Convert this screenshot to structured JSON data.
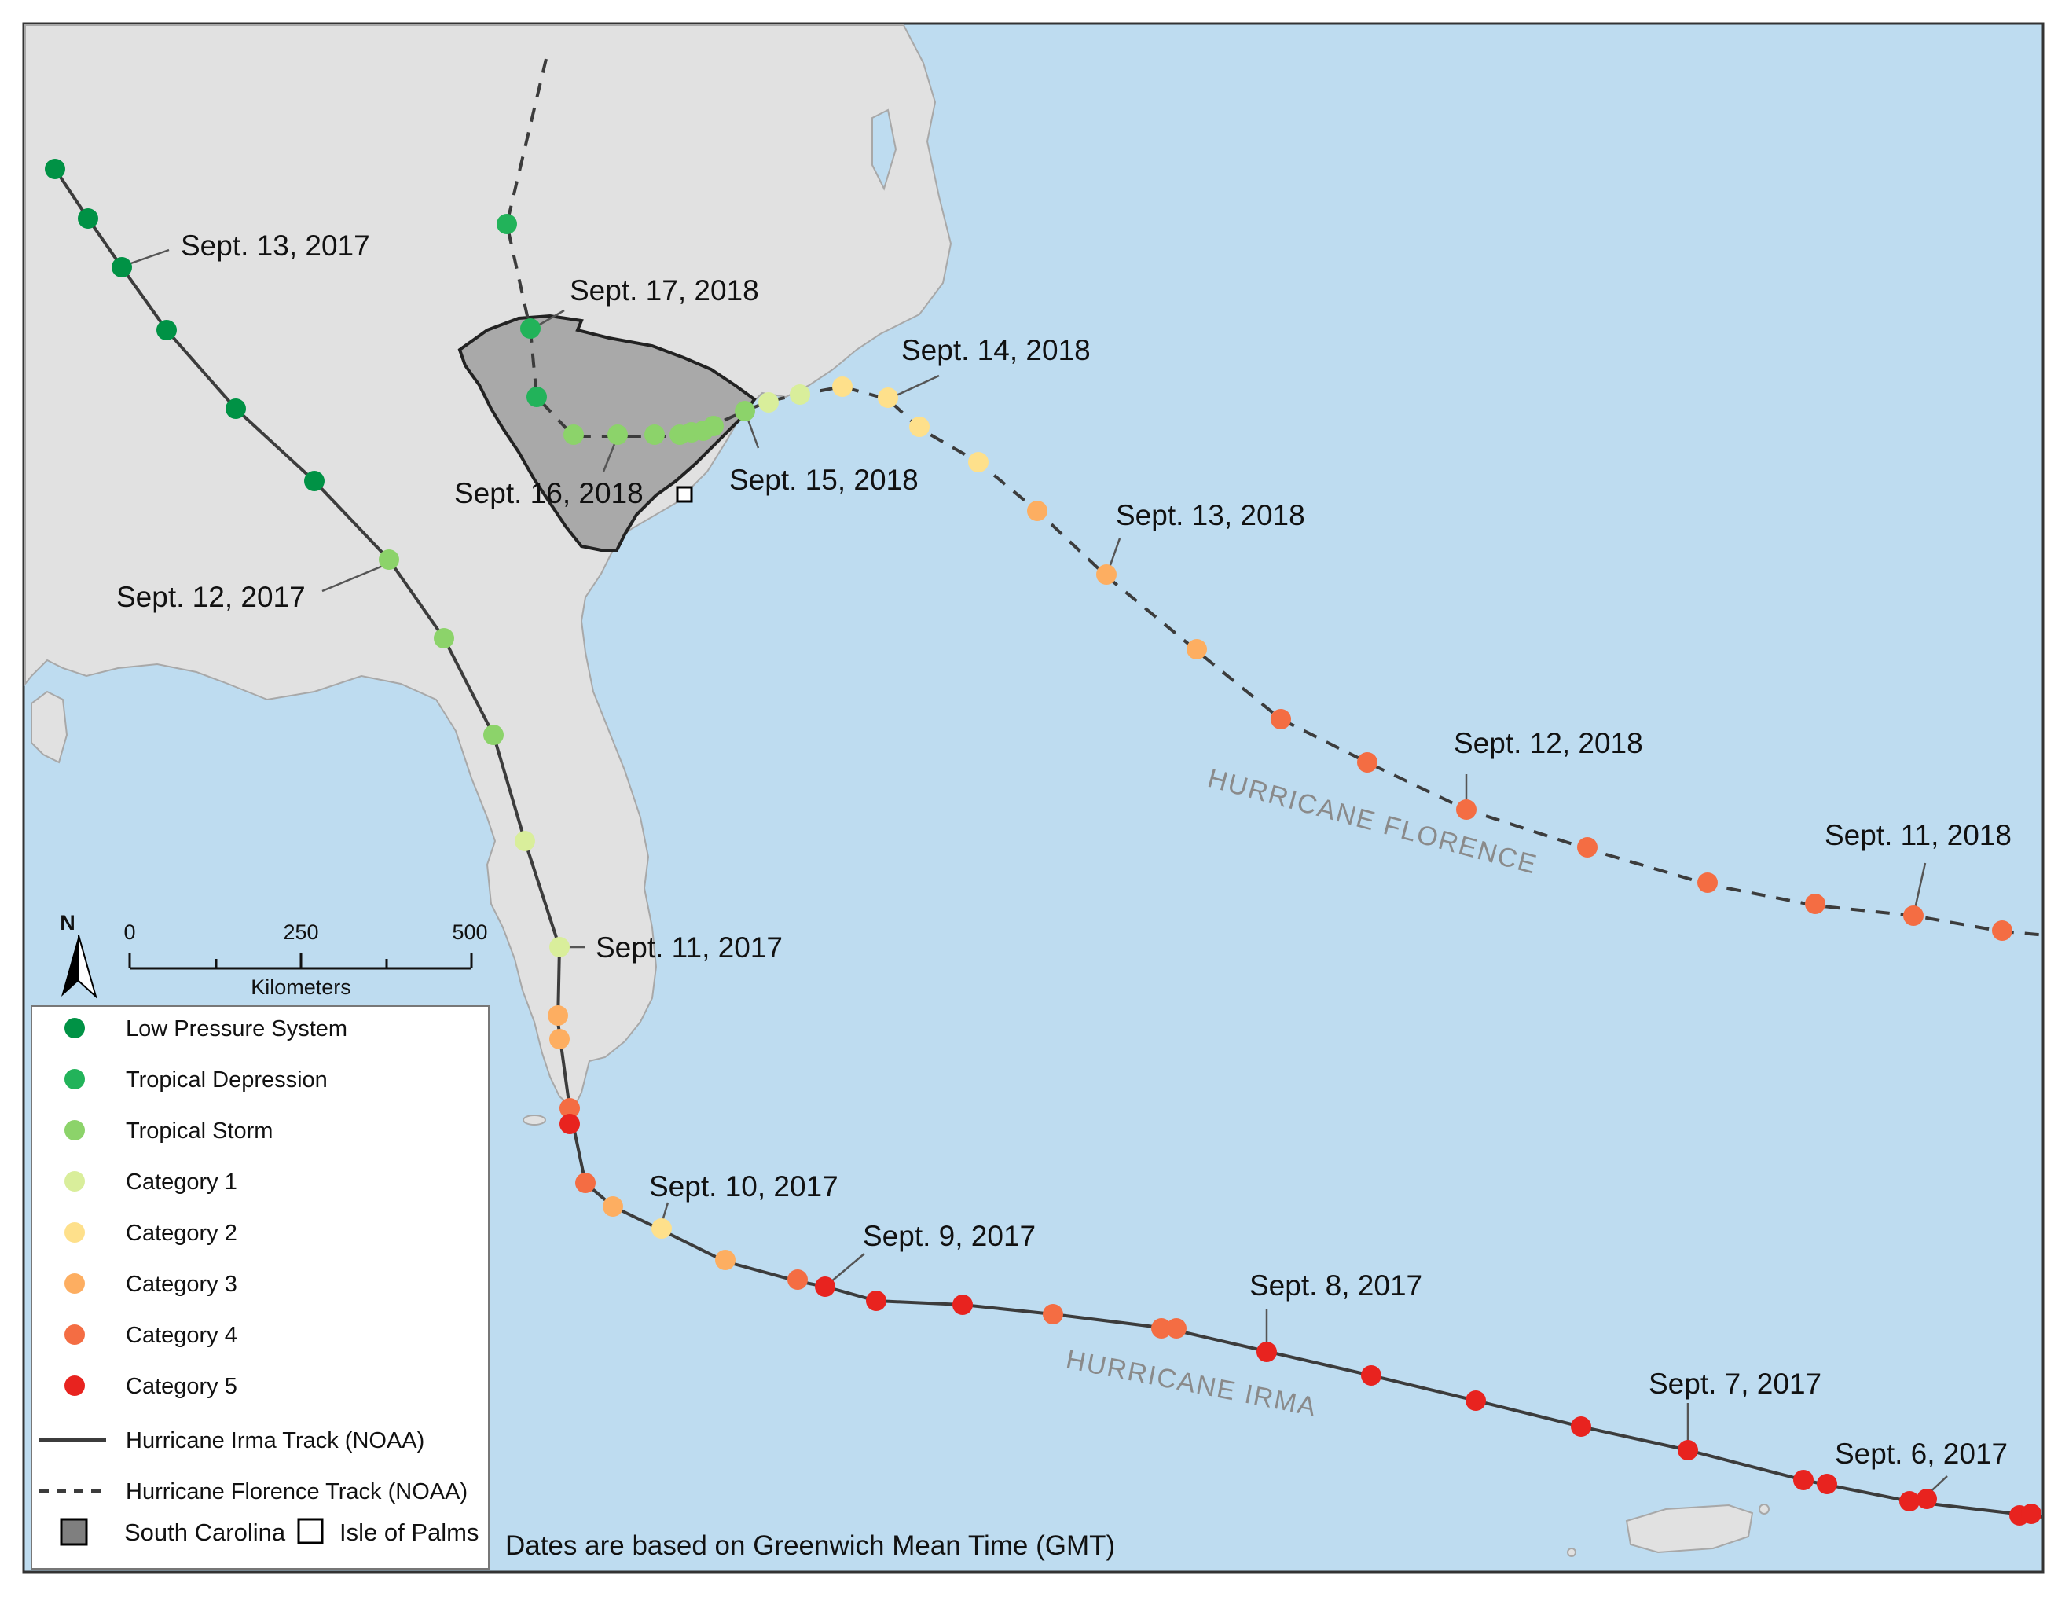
{
  "colors": {
    "ocean": "#bedcf0",
    "land": "#e1e1e1",
    "south_carolina": "#a9a9a9",
    "low_pressure_system": "#009245",
    "tropical_depression": "#22b35a",
    "tropical_storm": "#8cd36a",
    "category_1": "#d9ee9b",
    "category_2": "#fee08b",
    "category_3": "#fdae61",
    "category_4": "#f46d43",
    "category_5": "#e8231f",
    "track": "#3c3c3c"
  },
  "storm_names": {
    "florence": "HURRICANE FLORENCE",
    "irma": "HURRICANE IRMA"
  },
  "date_labels": {
    "irma_sep13": "Sept. 13, 2017",
    "irma_sep12": "Sept. 12, 2017",
    "irma_sep11": "Sept. 11, 2017",
    "irma_sep10": "Sept. 10, 2017",
    "irma_sep9": "Sept. 9, 2017",
    "irma_sep8": "Sept. 8, 2017",
    "irma_sep7": "Sept. 7, 2017",
    "irma_sep6": "Sept. 6, 2017",
    "florence_sep17": "Sept. 17, 2018",
    "florence_sep16": "Sept. 16, 2018",
    "florence_sep15": "Sept. 15, 2018",
    "florence_sep14": "Sept. 14, 2018",
    "florence_sep13": "Sept. 13, 2018",
    "florence_sep12": "Sept. 12, 2018",
    "florence_sep11": "Sept. 11, 2018"
  },
  "scale_bar": {
    "north_label": "N",
    "ticks": [
      "0",
      "250",
      "500"
    ],
    "unit": "Kilometers"
  },
  "legend": {
    "items": [
      {
        "label": "Low Pressure System",
        "color_key": "low_pressure_system"
      },
      {
        "label": "Tropical Depression",
        "color_key": "tropical_depression"
      },
      {
        "label": "Tropical Storm",
        "color_key": "tropical_storm"
      },
      {
        "label": "Category 1",
        "color_key": "category_1"
      },
      {
        "label": "Category 2",
        "color_key": "category_2"
      },
      {
        "label": "Category 3",
        "color_key": "category_3"
      },
      {
        "label": "Category 4",
        "color_key": "category_4"
      },
      {
        "label": "Category 5",
        "color_key": "category_5"
      }
    ],
    "irma_track_label": "Hurricane Irma Track (NOAA)",
    "florence_track_label": "Hurricane Florence Track (NOAA)",
    "south_carolina_label": "South Carolina",
    "isle_of_palms_label": "Isle of Palms"
  },
  "footnote": "Dates are based on Greenwich Mean Time (GMT)"
}
